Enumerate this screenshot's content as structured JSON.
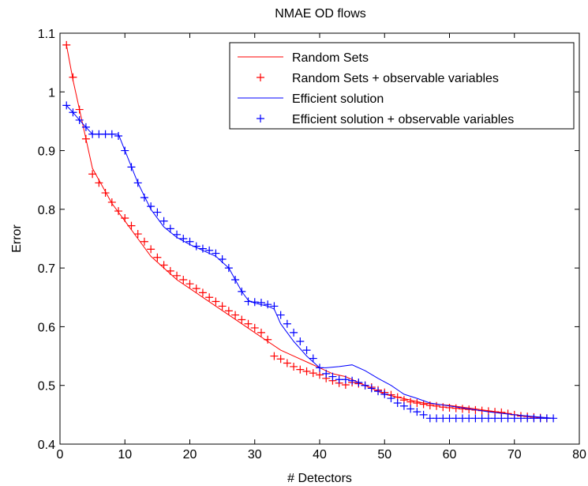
{
  "chart_data": {
    "type": "line",
    "title": "NMAE OD flows",
    "xlabel": "# Detectors",
    "ylabel": "Error",
    "xlim": [
      0,
      80
    ],
    "ylim": [
      0.4,
      1.1
    ],
    "xticks": [
      0,
      10,
      20,
      30,
      40,
      50,
      60,
      70,
      80
    ],
    "yticks": [
      0.4,
      0.5,
      0.6,
      0.7,
      0.8,
      0.9,
      1,
      1.1
    ],
    "xtick_labels": [
      "0",
      "10",
      "20",
      "30",
      "40",
      "50",
      "60",
      "70",
      "80"
    ],
    "ytick_labels": [
      "0.4",
      "0.5",
      "0.6",
      "0.7",
      "0.8",
      "0.9",
      "1",
      "1.1"
    ],
    "grid": false,
    "legend_position": "top-right",
    "series": [
      {
        "name": "Random Sets",
        "style": "line",
        "color": "#ff0000",
        "x": [
          1,
          2,
          3,
          4,
          5,
          6,
          8,
          10,
          12,
          14,
          16,
          18,
          20,
          22,
          24,
          26,
          28,
          30,
          32,
          34,
          36,
          38,
          40,
          42,
          44,
          46,
          48,
          50,
          52,
          54,
          56,
          58,
          60,
          62,
          64,
          66,
          68,
          70,
          72,
          74,
          76
        ],
        "y": [
          1.08,
          1.02,
          0.97,
          0.92,
          0.87,
          0.85,
          0.81,
          0.78,
          0.75,
          0.72,
          0.7,
          0.68,
          0.665,
          0.65,
          0.635,
          0.62,
          0.605,
          0.59,
          0.575,
          0.56,
          0.55,
          0.54,
          0.53,
          0.52,
          0.515,
          0.505,
          0.495,
          0.485,
          0.48,
          0.475,
          0.47,
          0.468,
          0.466,
          0.463,
          0.46,
          0.457,
          0.454,
          0.45,
          0.447,
          0.445,
          0.444
        ]
      },
      {
        "name": "Random Sets + observable variables",
        "style": "markers",
        "color": "#ff0000",
        "x": [
          1,
          2,
          3,
          4,
          5,
          6,
          7,
          8,
          9,
          10,
          11,
          12,
          13,
          14,
          15,
          16,
          17,
          18,
          19,
          20,
          21,
          22,
          23,
          24,
          25,
          26,
          27,
          28,
          29,
          30,
          31,
          32,
          33,
          34,
          35,
          36,
          37,
          38,
          39,
          40,
          41,
          42,
          43,
          44,
          45,
          46,
          47,
          48,
          49,
          50,
          51,
          52,
          53,
          54,
          55,
          56,
          57,
          58,
          59,
          60,
          61,
          62,
          63,
          64,
          65,
          66,
          67,
          68,
          69,
          70,
          71,
          72,
          73,
          74,
          75
        ],
        "y": [
          1.08,
          1.025,
          0.97,
          0.92,
          0.86,
          0.845,
          0.828,
          0.812,
          0.797,
          0.785,
          0.772,
          0.758,
          0.745,
          0.732,
          0.718,
          0.705,
          0.695,
          0.687,
          0.68,
          0.673,
          0.665,
          0.658,
          0.65,
          0.643,
          0.635,
          0.627,
          0.62,
          0.612,
          0.605,
          0.598,
          0.59,
          0.578,
          0.55,
          0.545,
          0.538,
          0.532,
          0.527,
          0.524,
          0.521,
          0.518,
          0.512,
          0.508,
          0.504,
          0.501,
          0.505,
          0.503,
          0.5,
          0.497,
          0.492,
          0.488,
          0.484,
          0.48,
          0.475,
          0.472,
          0.47,
          0.468,
          0.466,
          0.465,
          0.463,
          0.462,
          0.461,
          0.46,
          0.459,
          0.458,
          0.457,
          0.456,
          0.455,
          0.454,
          0.452,
          0.45,
          0.448,
          0.447,
          0.446,
          0.445,
          0.444
        ]
      },
      {
        "name": "Efficient solution",
        "style": "line",
        "color": "#0000ff",
        "x": [
          1,
          2,
          3,
          4,
          5,
          6,
          7,
          8,
          9,
          10,
          12,
          14,
          16,
          18,
          20,
          22,
          24,
          25,
          26,
          27,
          28,
          29,
          30,
          32,
          33,
          34,
          36,
          38,
          40,
          41,
          43,
          45,
          47,
          49,
          51,
          53,
          55,
          57,
          60,
          63,
          66,
          70,
          73,
          76
        ],
        "y": [
          0.977,
          0.965,
          0.952,
          0.94,
          0.928,
          0.928,
          0.928,
          0.928,
          0.928,
          0.9,
          0.845,
          0.8,
          0.77,
          0.752,
          0.74,
          0.73,
          0.72,
          0.71,
          0.7,
          0.68,
          0.66,
          0.645,
          0.64,
          0.635,
          0.63,
          0.605,
          0.575,
          0.55,
          0.53,
          0.53,
          0.532,
          0.535,
          0.525,
          0.512,
          0.5,
          0.485,
          0.478,
          0.47,
          0.465,
          0.46,
          0.455,
          0.45,
          0.447,
          0.444
        ]
      },
      {
        "name": "Efficient solution + observable variables",
        "style": "markers",
        "color": "#0000ff",
        "x": [
          1,
          2,
          3,
          4,
          5,
          6,
          7,
          8,
          9,
          10,
          11,
          12,
          13,
          14,
          15,
          16,
          17,
          18,
          19,
          20,
          21,
          22,
          23,
          24,
          25,
          26,
          27,
          28,
          29,
          30,
          31,
          32,
          33,
          34,
          35,
          36,
          37,
          38,
          39,
          40,
          41,
          42,
          43,
          44,
          45,
          46,
          47,
          48,
          49,
          50,
          51,
          52,
          53,
          54,
          55,
          56,
          57,
          58,
          59,
          60,
          61,
          62,
          63,
          64,
          65,
          66,
          67,
          68,
          69,
          70,
          71,
          72,
          73,
          74,
          75,
          76
        ],
        "y": [
          0.977,
          0.965,
          0.952,
          0.94,
          0.928,
          0.928,
          0.928,
          0.928,
          0.925,
          0.9,
          0.872,
          0.845,
          0.82,
          0.805,
          0.795,
          0.78,
          0.767,
          0.757,
          0.75,
          0.745,
          0.737,
          0.733,
          0.73,
          0.725,
          0.715,
          0.7,
          0.68,
          0.66,
          0.643,
          0.642,
          0.641,
          0.638,
          0.635,
          0.62,
          0.605,
          0.59,
          0.575,
          0.56,
          0.546,
          0.53,
          0.52,
          0.515,
          0.51,
          0.51,
          0.508,
          0.505,
          0.5,
          0.495,
          0.49,
          0.485,
          0.478,
          0.47,
          0.465,
          0.46,
          0.455,
          0.45,
          0.444,
          0.444,
          0.444,
          0.444,
          0.444,
          0.444,
          0.444,
          0.444,
          0.444,
          0.444,
          0.444,
          0.444,
          0.444,
          0.444,
          0.444,
          0.444,
          0.444,
          0.444,
          0.444,
          0.444
        ]
      }
    ]
  }
}
